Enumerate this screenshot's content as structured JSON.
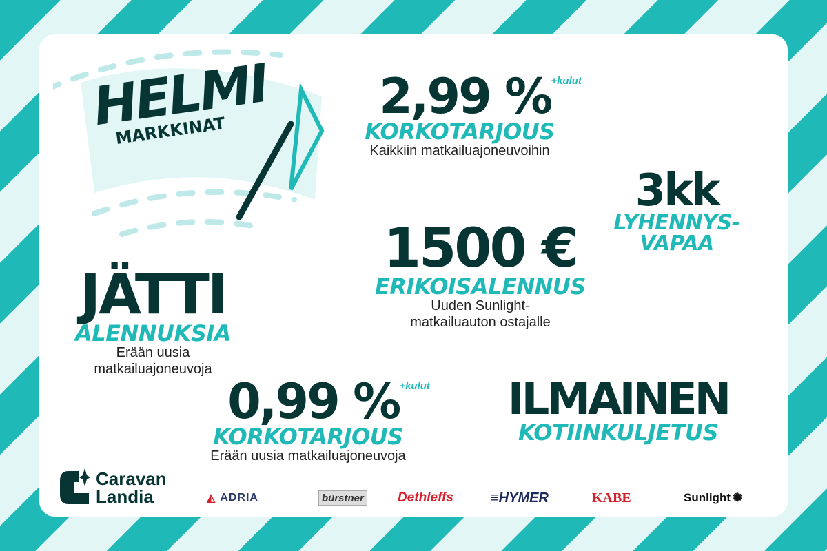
{
  "colors": {
    "teal": "#1fb9b8",
    "light": "#e3f6f6",
    "dark": "#063534"
  },
  "logo": {
    "line1": "HELMI",
    "line2": "MARKKINAT"
  },
  "offers": [
    {
      "value": "2,99 %",
      "sup": "+kulut",
      "title": "KORKOTARJOUS",
      "text": "Kaikkiin matkailuajoneuvoihin"
    },
    {
      "value": "3kk",
      "title1": "LYHENNYS-",
      "title2": "VAPAA"
    },
    {
      "value": "1500 €",
      "title": "ERIKOISALENNUS",
      "text1": "Uuden Sunlight-",
      "text2": "matkailuauton ostajalle"
    },
    {
      "value": "JÄTTI",
      "title": "ALENNUKSIA",
      "text1": "Erään uusia",
      "text2": "matkailuajoneuvoja"
    },
    {
      "value": "0,99 %",
      "sup": "+kulut",
      "title": "KORKOTARJOUS",
      "text": "Erään uusia matkailuajoneuvoja"
    },
    {
      "value": "ILMAINEN",
      "title": "KOTIINKULJETUS"
    }
  ],
  "footer": {
    "company1": "Caravan",
    "company2": "Landia",
    "brands": [
      "ADRIA",
      "bürstner",
      "Dethleffs",
      "HYMER",
      "KABE",
      "Sunlight"
    ]
  }
}
